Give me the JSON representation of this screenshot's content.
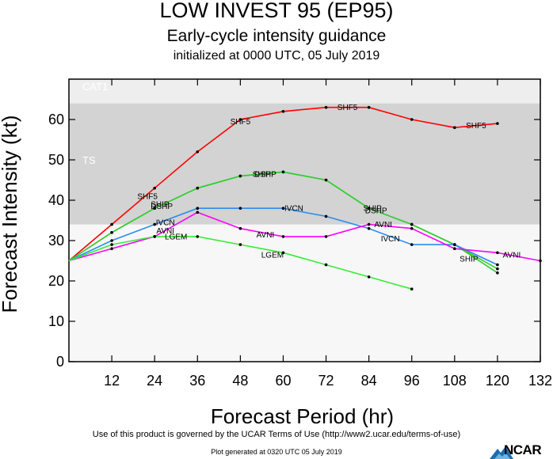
{
  "header": {
    "title": "LOW INVEST 95 (EP95)",
    "subtitle": "Early-cycle intensity guidance",
    "init": "initialized at 0000 UTC, 05 July 2019"
  },
  "footer": {
    "terms": "Use of this product is governed by the UCAR Terms of Use (http://www2.ucar.edu/terms-of-use)",
    "generated": "Plot generated at 0320 UTC  05 July 2019",
    "logo": "NCAR"
  },
  "colors": {
    "SHF5": "#ff0000",
    "DSHP": "#33cc33",
    "SHIP": "#33cc33",
    "IVCN": "#2a8cf0",
    "AVNI": "#ff00ff",
    "LGEM": "#33ee33"
  },
  "chart_data": {
    "type": "line",
    "xlabel": "Forecast Period (hr)",
    "ylabel": "Forecast Intensity (kt)",
    "xlim": [
      0,
      132
    ],
    "ylim": [
      0,
      70
    ],
    "xticks": [
      12,
      24,
      36,
      48,
      60,
      72,
      84,
      96,
      108,
      120,
      132
    ],
    "yticks": [
      0,
      10,
      20,
      30,
      40,
      50,
      60
    ],
    "bands": [
      {
        "label": "TS",
        "from": 34,
        "to": 64
      },
      {
        "label": "CAT1",
        "from": 64,
        "to": 83
      }
    ],
    "series": [
      {
        "name": "SHF5",
        "x": [
          0,
          12,
          24,
          36,
          48,
          60,
          72,
          84,
          96,
          108,
          120
        ],
        "values": [
          25,
          34,
          43,
          52,
          60,
          62,
          63,
          63,
          60,
          58,
          59
        ]
      },
      {
        "name": "DSHP",
        "x": [
          0,
          12,
          24,
          36,
          48,
          60,
          72,
          84,
          96,
          108,
          120
        ],
        "values": [
          25,
          32,
          38,
          43,
          46,
          47,
          45,
          38,
          34,
          29,
          23
        ]
      },
      {
        "name": "SHIP",
        "x": [
          0,
          12,
          24,
          36,
          48,
          60,
          72,
          84,
          96,
          108,
          120
        ],
        "values": [
          25,
          32,
          38,
          43,
          46,
          47,
          45,
          38,
          34,
          29,
          22
        ]
      },
      {
        "name": "IVCN",
        "x": [
          0,
          12,
          24,
          36,
          48,
          60,
          72,
          84,
          96,
          108,
          120
        ],
        "values": [
          25,
          30,
          34,
          38,
          38,
          38,
          36,
          33,
          29,
          29,
          24
        ]
      },
      {
        "name": "AVNI",
        "x": [
          0,
          12,
          24,
          36,
          48,
          60,
          72,
          84,
          96,
          108,
          120,
          132
        ],
        "values": [
          25,
          28,
          31,
          37,
          33,
          31,
          31,
          34,
          33,
          28,
          27,
          25
        ]
      },
      {
        "name": "LGEM",
        "x": [
          0,
          12,
          24,
          36,
          48,
          60,
          72,
          84,
          96
        ],
        "values": [
          25,
          29,
          31,
          31,
          29,
          27,
          24,
          21,
          18
        ]
      }
    ],
    "labels": [
      {
        "series": "SHF5",
        "x": 22,
        "y": 41
      },
      {
        "series": "SHF5",
        "x": 48,
        "y": 59.5
      },
      {
        "series": "SHF5",
        "x": 78,
        "y": 63
      },
      {
        "series": "SHF5",
        "x": 114,
        "y": 58.5
      },
      {
        "series": "DSHP",
        "x": 26,
        "y": 38.5
      },
      {
        "series": "SHIP",
        "x": 25.5,
        "y": 39
      },
      {
        "series": "DSHP",
        "x": 55,
        "y": 46.5
      },
      {
        "series": "SHIP",
        "x": 54,
        "y": 46.5
      },
      {
        "series": "DSHP",
        "x": 86,
        "y": 37.5
      },
      {
        "series": "SHIP",
        "x": 85,
        "y": 38
      },
      {
        "series": "SHIP",
        "x": 112,
        "y": 25.5
      },
      {
        "series": "IVCN",
        "x": 27,
        "y": 34.5
      },
      {
        "series": "IVCN",
        "x": 63,
        "y": 38
      },
      {
        "series": "IVCN",
        "x": 90,
        "y": 30.5
      },
      {
        "series": "AVNI",
        "x": 27,
        "y": 32.5
      },
      {
        "series": "AVNI",
        "x": 55,
        "y": 31.5
      },
      {
        "series": "AVNI",
        "x": 88,
        "y": 34
      },
      {
        "series": "AVNI",
        "x": 124,
        "y": 26.5
      },
      {
        "series": "LGEM",
        "x": 30,
        "y": 31
      },
      {
        "series": "LGEM",
        "x": 57,
        "y": 26.5
      }
    ]
  }
}
